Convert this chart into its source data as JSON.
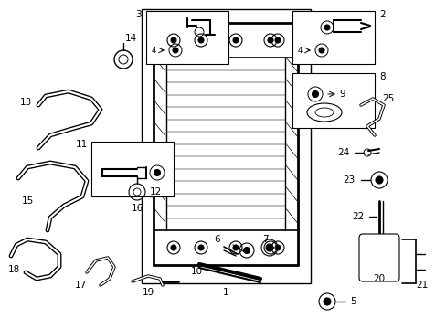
{
  "background_color": "#ffffff",
  "fig_width": 4.89,
  "fig_height": 3.6,
  "dpi": 100,
  "font_size": 7.5
}
